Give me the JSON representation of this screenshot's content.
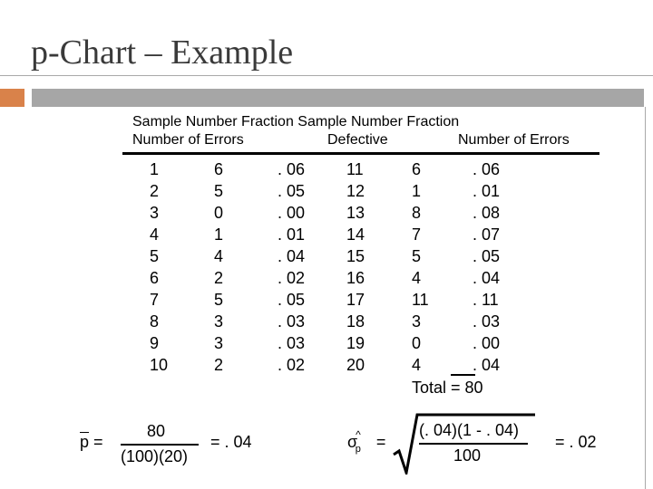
{
  "slide": {
    "title": "p-Chart – Example",
    "accent_color": "#d9824a",
    "band_color": "#a6a6a6"
  },
  "headers": {
    "line1": "Sample  Number Fraction Sample  Number Fraction",
    "line2_left": "Number of Errors",
    "line2_mid": "Defective",
    "line2_right": "Number of Errors"
  },
  "table": {
    "left": {
      "sample": [
        "1",
        "2",
        "3",
        "4",
        "5",
        "6",
        "7",
        "8",
        "9",
        "10"
      ],
      "errors": [
        "6",
        "5",
        "0",
        "1",
        "4",
        "2",
        "5",
        "3",
        "3",
        "2"
      ],
      "fraction": [
        ". 06",
        ". 05",
        ". 00",
        ". 01",
        ". 04",
        ". 02",
        ". 05",
        ". 03",
        ". 03",
        ". 02"
      ]
    },
    "right": {
      "sample": [
        "11",
        "12",
        "13",
        "14",
        "15",
        "16",
        "17",
        "18",
        "19",
        "20"
      ],
      "errors": [
        "6",
        "1",
        "8",
        "7",
        "5",
        "4",
        "11",
        "3",
        "0",
        "4"
      ],
      "fraction": [
        ". 06",
        ". 01",
        ". 08",
        ". 07",
        ". 05",
        ". 04",
        ". 11",
        ". 03",
        ". 00",
        ". 04"
      ]
    },
    "total": "Total = 80"
  },
  "formulas": {
    "pbar_symbol": "p",
    "pbar_eq": "=",
    "pbar_num": "80",
    "pbar_den": "(100)(20)",
    "pbar_result": "= . 04",
    "sigma_symbol": "σ",
    "sigma_hat": "^",
    "sigma_sub": "p",
    "sigma_eq": "=",
    "sigma_num": "(. 04)(1 - . 04)",
    "sigma_den": "100",
    "sigma_result": "= . 02"
  }
}
